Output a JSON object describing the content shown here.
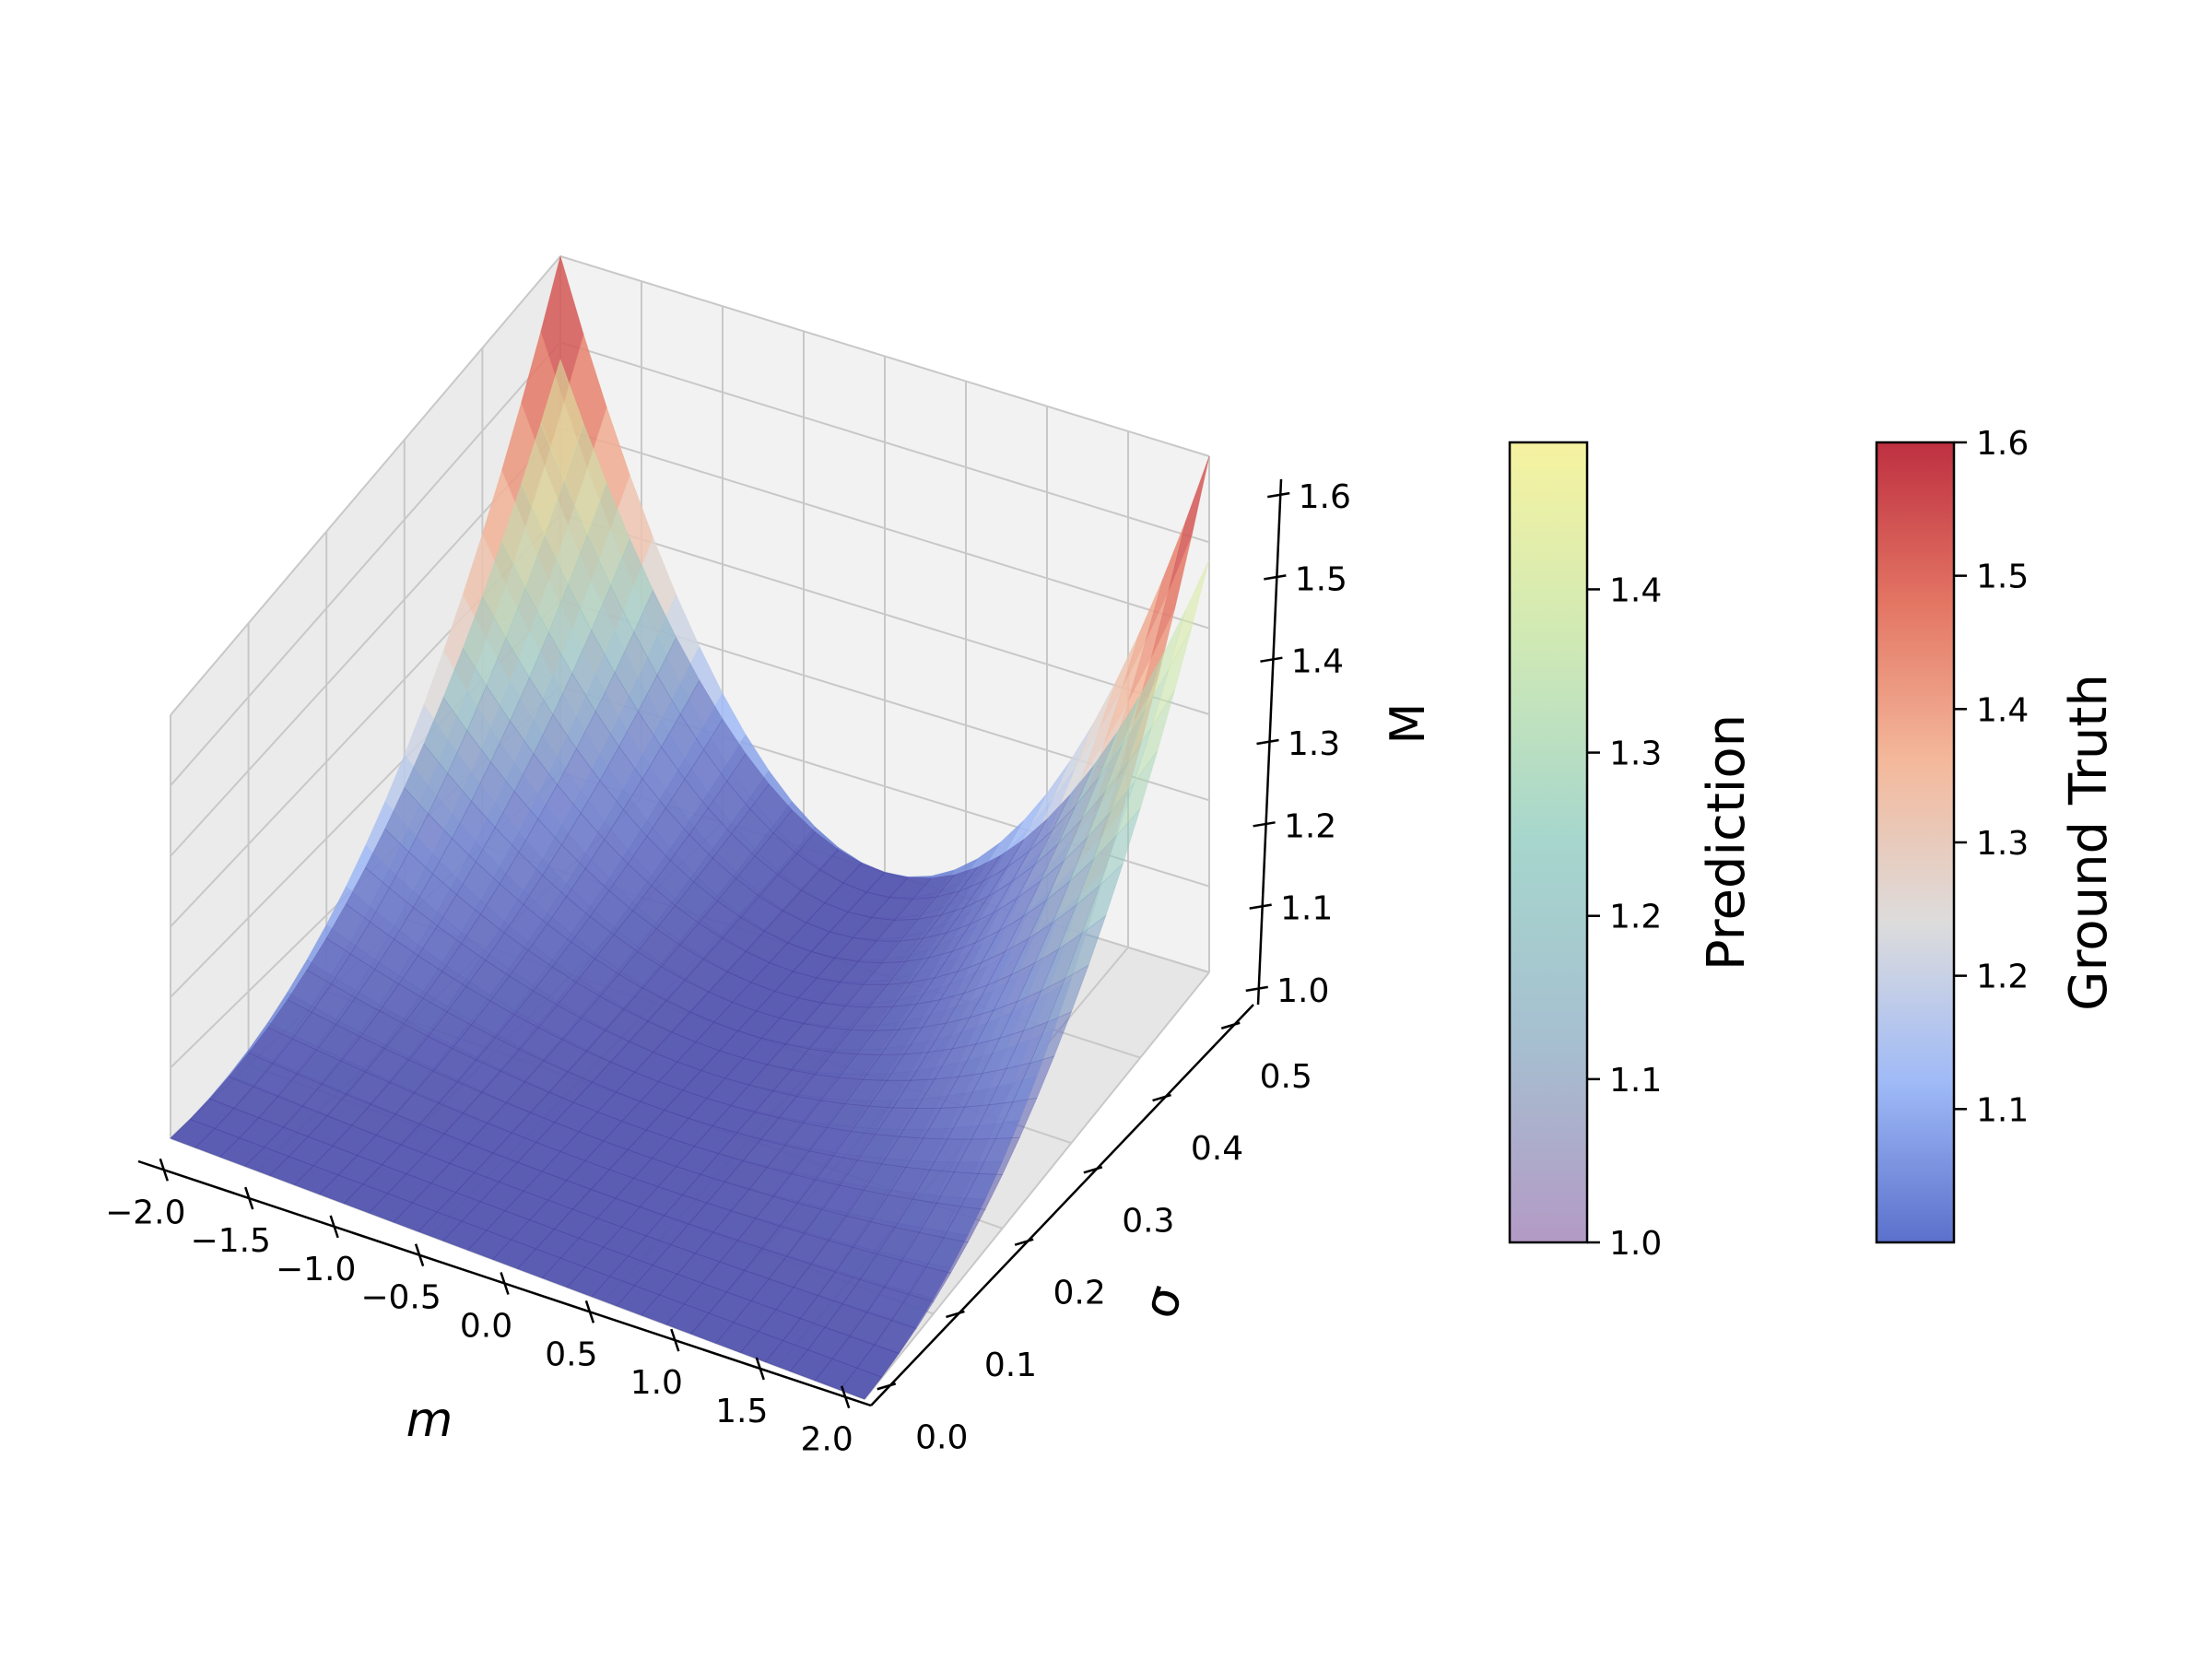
{
  "chart_data": {
    "type": "surface3d",
    "title": "",
    "x_axis": {
      "label": "m",
      "range": [
        -2.0,
        2.0
      ],
      "ticks": [
        -2.0,
        -1.5,
        -1.0,
        -0.5,
        0.0,
        0.5,
        1.0,
        1.5,
        2.0
      ],
      "tick_labels": [
        "−2.0",
        "−1.5",
        "−1.0",
        "−0.5",
        "0.0",
        "0.5",
        "1.0",
        "1.5",
        "2.0"
      ]
    },
    "y_axis": {
      "label": "σ",
      "range": [
        0.0,
        0.5
      ],
      "ticks": [
        0.0,
        0.1,
        0.2,
        0.3,
        0.4,
        0.5
      ],
      "tick_labels": [
        "0.0",
        "0.1",
        "0.2",
        "0.3",
        "0.4",
        "0.5"
      ]
    },
    "z_axis": {
      "label": "M",
      "range": [
        1.0,
        1.6
      ],
      "ticks": [
        1.0,
        1.1,
        1.2,
        1.3,
        1.4,
        1.5,
        1.6
      ],
      "tick_labels": [
        "1.0",
        "1.1",
        "1.2",
        "1.3",
        "1.4",
        "1.5",
        "1.6"
      ]
    },
    "grid": true,
    "series": [
      {
        "name": "Ground Truth",
        "colormap": "coolwarm",
        "alpha": 0.8,
        "approx_values": {
          "m": [
            -2.0,
            -1.0,
            0.0,
            1.0,
            2.0
          ],
          "sigma_0.0": [
            1.0,
            1.0,
            1.0,
            1.0,
            1.0
          ],
          "sigma_0.5": [
            1.6,
            1.12,
            1.0,
            1.12,
            1.6
          ]
        }
      },
      {
        "name": "Prediction",
        "colormap": "Spectral_r",
        "alpha": 0.4,
        "approx_values": {
          "m": [
            -2.0,
            -1.0,
            0.0,
            1.0,
            2.0
          ],
          "sigma_0.0": [
            1.0,
            1.0,
            1.0,
            1.0,
            1.0
          ],
          "sigma_0.5": [
            1.48,
            1.1,
            1.0,
            1.1,
            1.48
          ]
        }
      }
    ],
    "colorbars": [
      {
        "label": "Prediction",
        "range": [
          1.0,
          1.49
        ],
        "ticks": [
          1.0,
          1.1,
          1.2,
          1.3,
          1.4
        ],
        "tick_labels": [
          "1.0",
          "1.1",
          "1.2",
          "1.3",
          "1.4"
        ],
        "stops": [
          "#b39ac5",
          "#a6bfd0",
          "#a6d6cd",
          "#cfe9b5",
          "#f6f3a0"
        ]
      },
      {
        "label": "Ground Truth",
        "range": [
          1.0,
          1.6
        ],
        "ticks": [
          1.1,
          1.2,
          1.3,
          1.4,
          1.5,
          1.6
        ],
        "tick_labels": [
          "1.1",
          "1.2",
          "1.3",
          "1.4",
          "1.5",
          "1.6"
        ],
        "stops": [
          "#5b70cb",
          "#9fbaf7",
          "#dddcdc",
          "#f4b99c",
          "#e37563",
          "#be3041"
        ]
      }
    ]
  }
}
